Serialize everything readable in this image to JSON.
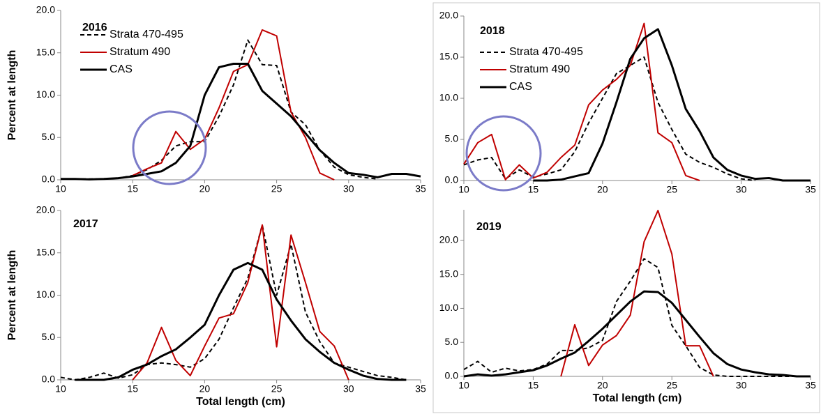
{
  "chart_data": [
    {
      "type": "line",
      "title": "2016",
      "ylabel": "Percent at length",
      "x": [
        10,
        11,
        12,
        13,
        14,
        15,
        16,
        17,
        18,
        19,
        20,
        21,
        22,
        23,
        24,
        25,
        26,
        27,
        28,
        29,
        30,
        31,
        32,
        33,
        34,
        35
      ],
      "series": [
        {
          "name": "Strata 470-495",
          "color": "#000000",
          "dash": true,
          "width": 2,
          "values": [
            0.1,
            0.1,
            0.1,
            0.1,
            0.2,
            0.5,
            1.2,
            2.3,
            4.0,
            4.5,
            4.5,
            7.5,
            11.2,
            16.5,
            13.6,
            13.5,
            8.0,
            6.5,
            3.5,
            1.5,
            0.6,
            0.3,
            0.1,
            null,
            null,
            null
          ]
        },
        {
          "name": "Stratum 490",
          "color": "#c00000",
          "dash": false,
          "width": 2,
          "values": [
            null,
            null,
            null,
            null,
            null,
            0.5,
            1.3,
            2.0,
            5.7,
            3.6,
            4.8,
            8.5,
            12.8,
            13.6,
            17.7,
            17.0,
            8.0,
            5.0,
            0.8,
            0.0,
            null,
            null,
            null,
            null,
            null,
            null
          ]
        },
        {
          "name": "CAS",
          "color": "#000000",
          "dash": false,
          "width": 3,
          "values": [
            0.1,
            0.1,
            0.05,
            0.1,
            0.2,
            0.4,
            0.7,
            1.0,
            2.0,
            4.0,
            10.0,
            13.3,
            13.7,
            13.7,
            10.5,
            9.0,
            7.5,
            5.5,
            3.5,
            2.0,
            0.8,
            0.6,
            0.3,
            0.7,
            0.7,
            0.4
          ]
        }
      ],
      "xlim": [
        10,
        35
      ],
      "xticks": [
        10,
        15,
        20,
        25,
        30,
        35
      ],
      "ylim": [
        0,
        20
      ],
      "yticks": [
        {
          "value": 0,
          "label": "0.0"
        },
        {
          "value": 5,
          "label": "5.0"
        },
        {
          "value": 10,
          "label": "10.0"
        },
        {
          "value": 15,
          "label": "15.0"
        },
        {
          "value": 20,
          "label": "20.0"
        }
      ],
      "legend": "upper-left"
    },
    {
      "type": "line",
      "title": "2018",
      "x": [
        10,
        11,
        12,
        13,
        14,
        15,
        16,
        17,
        18,
        19,
        20,
        21,
        22,
        23,
        24,
        25,
        26,
        27,
        28,
        29,
        30,
        31,
        32,
        33,
        34,
        35
      ],
      "series": [
        {
          "name": "Strata 470-495",
          "color": "#000000",
          "dash": true,
          "width": 2,
          "values": [
            1.9,
            2.5,
            2.8,
            0.2,
            1.3,
            0.4,
            0.8,
            1.3,
            3.5,
            7.0,
            10.0,
            13.0,
            14.0,
            15.0,
            9.5,
            6.2,
            3.2,
            2.2,
            1.6,
            0.8,
            0.2,
            0.0,
            null,
            null,
            null,
            null
          ]
        },
        {
          "name": "Stratum 490",
          "color": "#c00000",
          "dash": false,
          "width": 2,
          "values": [
            2.0,
            4.6,
            5.6,
            0.1,
            1.9,
            0.3,
            1.0,
            2.8,
            4.3,
            9.2,
            11.0,
            12.3,
            14.0,
            19.1,
            5.8,
            4.6,
            0.6,
            0.0,
            null,
            null,
            null,
            null,
            null,
            null,
            null,
            null
          ]
        },
        {
          "name": "CAS",
          "color": "#000000",
          "dash": false,
          "width": 3,
          "values": [
            null,
            null,
            null,
            null,
            null,
            0.0,
            0.0,
            0.1,
            0.5,
            0.9,
            4.5,
            9.5,
            14.8,
            17.3,
            18.4,
            14.0,
            8.7,
            6.0,
            2.8,
            1.3,
            0.6,
            0.2,
            0.3,
            0.0,
            0.0,
            0.0
          ]
        }
      ],
      "xlim": [
        10,
        35
      ],
      "xticks": [
        10,
        15,
        20,
        25,
        30,
        35
      ],
      "ylim": [
        0,
        20
      ],
      "yticks": [
        {
          "value": 0,
          "label": "0.0"
        },
        {
          "value": 5,
          "label": "5.0"
        },
        {
          "value": 10,
          "label": "10.0"
        },
        {
          "value": 15,
          "label": "15.0"
        },
        {
          "value": 20,
          "label": "20.0"
        }
      ],
      "legend": "upper-left"
    },
    {
      "type": "line",
      "title": "2017",
      "ylabel": "Percent at length",
      "xlabel": "Total length (cm)",
      "x": [
        10,
        11,
        12,
        13,
        14,
        15,
        16,
        17,
        18,
        19,
        20,
        21,
        22,
        23,
        24,
        25,
        26,
        27,
        28,
        29,
        30,
        31,
        32,
        33,
        34,
        35
      ],
      "series": [
        {
          "color": "#000000",
          "dash": true,
          "width": 2,
          "values": [
            0.3,
            0.0,
            0.3,
            0.8,
            0.2,
            0.6,
            1.8,
            2.0,
            1.8,
            1.5,
            2.5,
            4.8,
            8.5,
            12.0,
            18.3,
            10.0,
            16.0,
            8.0,
            4.5,
            2.0,
            1.5,
            1.0,
            0.5,
            0.3,
            0.0,
            null
          ]
        },
        {
          "color": "#c00000",
          "dash": false,
          "width": 2,
          "values": [
            null,
            null,
            null,
            null,
            null,
            0.0,
            2.0,
            6.2,
            2.3,
            0.5,
            4.0,
            7.3,
            7.8,
            11.5,
            18.3,
            3.9,
            17.1,
            11.5,
            5.7,
            4.0,
            0.0,
            null,
            null,
            null,
            null,
            null
          ]
        },
        {
          "color": "#000000",
          "dash": false,
          "width": 3,
          "values": [
            null,
            0.0,
            0.0,
            0.0,
            0.3,
            1.2,
            1.8,
            2.8,
            3.6,
            5.0,
            6.5,
            10.0,
            13.0,
            13.8,
            13.0,
            9.5,
            7.0,
            4.8,
            3.3,
            2.0,
            1.2,
            0.5,
            0.1,
            0.0,
            0.0,
            null
          ]
        }
      ],
      "xlim": [
        10,
        35
      ],
      "xticks": [
        10,
        15,
        20,
        25,
        30,
        35
      ],
      "ylim": [
        0,
        20
      ],
      "yticks": [
        {
          "value": 0,
          "label": "0.0"
        },
        {
          "value": 5,
          "label": "5.0"
        },
        {
          "value": 10,
          "label": "10.0"
        },
        {
          "value": 15,
          "label": "15.0"
        },
        {
          "value": 20,
          "label": "20.0"
        }
      ]
    },
    {
      "type": "line",
      "title": "2019",
      "xlabel": "Total length (cm)",
      "x": [
        10,
        11,
        12,
        13,
        14,
        15,
        16,
        17,
        18,
        19,
        20,
        21,
        22,
        23,
        24,
        25,
        26,
        27,
        28,
        29,
        30,
        31,
        32,
        33,
        34,
        35
      ],
      "series": [
        {
          "color": "#000000",
          "dash": true,
          "width": 2,
          "values": [
            1.0,
            2.2,
            0.6,
            1.2,
            0.8,
            1.0,
            1.8,
            3.8,
            3.8,
            4.2,
            5.3,
            11.0,
            14.0,
            17.3,
            16.0,
            7.5,
            4.5,
            1.3,
            0.2,
            0.0,
            0.0,
            0.0,
            0.0,
            0.0,
            0.0,
            0.0
          ]
        },
        {
          "color": "#c00000",
          "dash": false,
          "width": 2,
          "values": [
            null,
            null,
            null,
            null,
            null,
            null,
            null,
            0.0,
            7.6,
            1.6,
            4.6,
            6.0,
            9.0,
            19.8,
            24.4,
            18.0,
            4.5,
            4.5,
            0.0,
            null,
            null,
            null,
            null,
            null,
            null,
            null
          ]
        },
        {
          "color": "#000000",
          "dash": false,
          "width": 3,
          "values": [
            0.0,
            0.3,
            0.1,
            0.3,
            0.6,
            0.9,
            1.6,
            2.6,
            3.5,
            5.2,
            7.0,
            9.0,
            11.0,
            12.5,
            12.4,
            10.8,
            8.3,
            5.8,
            3.4,
            1.8,
            1.0,
            0.6,
            0.3,
            0.2,
            0.0,
            0.0
          ]
        }
      ],
      "xlim": [
        10,
        35
      ],
      "xticks": [
        10,
        15,
        20,
        25,
        30,
        35
      ],
      "ylim": [
        0,
        24.5
      ],
      "yticks": [
        {
          "value": 0,
          "label": "0.0"
        },
        {
          "value": 5,
          "label": "5.0"
        },
        {
          "value": 10,
          "label": "10.0"
        },
        {
          "value": 15,
          "label": "15.0"
        },
        {
          "value": 20,
          "label": "20.0"
        }
      ]
    }
  ]
}
